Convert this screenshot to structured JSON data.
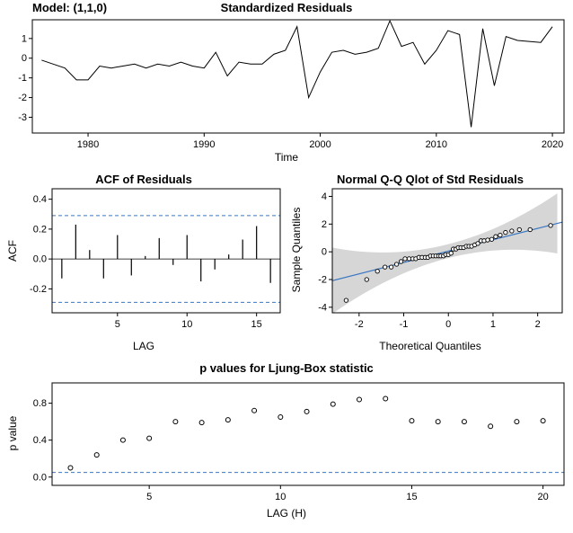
{
  "figure": {
    "background": "#ffffff"
  },
  "colors": {
    "accent_blue": "#3a77c2",
    "band_gray": "#d6d6d6",
    "axis": "#000000",
    "data": "#000000"
  },
  "chart_data": [
    {
      "id": "standardized-residuals",
      "type": "line",
      "title": "Standardized Residuals",
      "corner_label": "Model: (1,1,0)",
      "xlabel": "Time",
      "ylabel": "",
      "start_year": 1976,
      "values": [
        -0.1,
        -0.3,
        -0.5,
        -1.1,
        -1.1,
        -0.4,
        -0.5,
        -0.4,
        -0.3,
        -0.5,
        -0.3,
        -0.4,
        -0.2,
        -0.4,
        -0.5,
        0.3,
        -0.9,
        -0.2,
        -0.3,
        -0.3,
        0.2,
        0.4,
        1.6,
        -2.0,
        -0.7,
        0.3,
        0.4,
        0.2,
        0.3,
        0.5,
        1.9,
        0.6,
        0.8,
        -0.3,
        0.4,
        1.4,
        1.2,
        -3.5,
        1.5,
        -1.4,
        1.1,
        0.9,
        0.85,
        0.8,
        1.6
      ],
      "xlim": [
        1975.2,
        2021
      ],
      "ylim": [
        -3.8,
        1.95
      ],
      "xticks": [
        1980,
        1990,
        2000,
        2010,
        2020
      ],
      "xtick_labels": [
        "1980",
        "1990",
        "2000",
        "2010",
        "2020"
      ],
      "yticks": [
        -3,
        -2,
        -1,
        0,
        1
      ],
      "ytick_labels": [
        "-3",
        "-2",
        "-1",
        "0",
        "1"
      ]
    },
    {
      "id": "acf-of-residuals",
      "type": "bar",
      "title": "ACF of Residuals",
      "xlabel": "LAG",
      "ylabel": "ACF",
      "lags": [
        1,
        2,
        3,
        4,
        5,
        6,
        7,
        8,
        9,
        10,
        11,
        12,
        13,
        14,
        15,
        16
      ],
      "values": [
        -0.13,
        0.23,
        0.06,
        -0.13,
        0.16,
        -0.11,
        0.02,
        0.14,
        -0.04,
        0.16,
        -0.15,
        -0.07,
        0.03,
        0.13,
        0.22,
        -0.16
      ],
      "conf_level": 0.29,
      "xlim": [
        0.3,
        16.7
      ],
      "ylim": [
        -0.36,
        0.47
      ],
      "xticks": [
        5,
        10,
        15
      ],
      "xtick_labels": [
        "5",
        "10",
        "15"
      ],
      "yticks": [
        -0.2,
        0,
        0.2,
        0.4
      ],
      "ytick_labels": [
        "-0.2",
        "0.0",
        "0.2",
        "0.4"
      ]
    },
    {
      "id": "normal-qq-plot",
      "type": "scatter",
      "title": "Normal Q-Q Qlot of Std Residuals",
      "xlabel": "Theoretical Quantiles",
      "ylabel": "Sample Quantiles",
      "x": [
        -2.29,
        -1.83,
        -1.59,
        -1.42,
        -1.28,
        -1.16,
        -1.06,
        -0.97,
        -0.88,
        -0.8,
        -0.73,
        -0.66,
        -0.59,
        -0.52,
        -0.46,
        -0.4,
        -0.34,
        -0.28,
        -0.22,
        -0.17,
        -0.11,
        -0.06,
        0,
        0.06,
        0.11,
        0.17,
        0.22,
        0.28,
        0.34,
        0.4,
        0.46,
        0.52,
        0.59,
        0.66,
        0.73,
        0.8,
        0.88,
        0.97,
        1.06,
        1.16,
        1.28,
        1.42,
        1.59,
        1.83,
        2.29
      ],
      "y": [
        -3.5,
        -2.0,
        -1.4,
        -1.1,
        -1.1,
        -0.9,
        -0.7,
        -0.5,
        -0.5,
        -0.5,
        -0.5,
        -0.4,
        -0.4,
        -0.4,
        -0.4,
        -0.3,
        -0.3,
        -0.3,
        -0.3,
        -0.3,
        -0.3,
        -0.2,
        -0.2,
        -0.1,
        0.2,
        0.2,
        0.3,
        0.3,
        0.3,
        0.4,
        0.4,
        0.4,
        0.5,
        0.6,
        0.8,
        0.8,
        0.85,
        0.9,
        1.1,
        1.2,
        1.4,
        1.5,
        1.6,
        1.6,
        1.9
      ],
      "line": {
        "intercept": 0.05,
        "slope": 0.82
      },
      "band": {
        "base": 0.5,
        "quad": 0.28
      },
      "xlim": [
        -2.6,
        2.55
      ],
      "ylim": [
        -4.4,
        4.55
      ],
      "xticks": [
        -2,
        -1,
        0,
        1,
        2
      ],
      "xtick_labels": [
        "-2",
        "-1",
        "0",
        "1",
        "2"
      ],
      "yticks": [
        -4,
        -2,
        0,
        2,
        4
      ],
      "ytick_labels": [
        "-4",
        "-2",
        "0",
        "2",
        "4"
      ]
    },
    {
      "id": "ljung-box-pvalues",
      "type": "scatter",
      "title": "p values for Ljung-Box statistic",
      "xlabel": "LAG (H)",
      "ylabel": "p value",
      "start_h": 2,
      "values": [
        0.1,
        0.24,
        0.4,
        0.42,
        0.6,
        0.59,
        0.62,
        0.72,
        0.65,
        0.71,
        0.79,
        0.84,
        0.85,
        0.61,
        0.6,
        0.6,
        0.55,
        0.6,
        0.61
      ],
      "significance_line": 0.05,
      "xlim": [
        1.3,
        20.8
      ],
      "ylim": [
        -0.09,
        1.02
      ],
      "xticks": [
        5,
        10,
        15,
        20
      ],
      "xtick_labels": [
        "5",
        "10",
        "15",
        "20"
      ],
      "yticks": [
        0,
        0.4,
        0.8
      ],
      "ytick_labels": [
        "0.0",
        "0.4",
        "0.8"
      ]
    }
  ]
}
